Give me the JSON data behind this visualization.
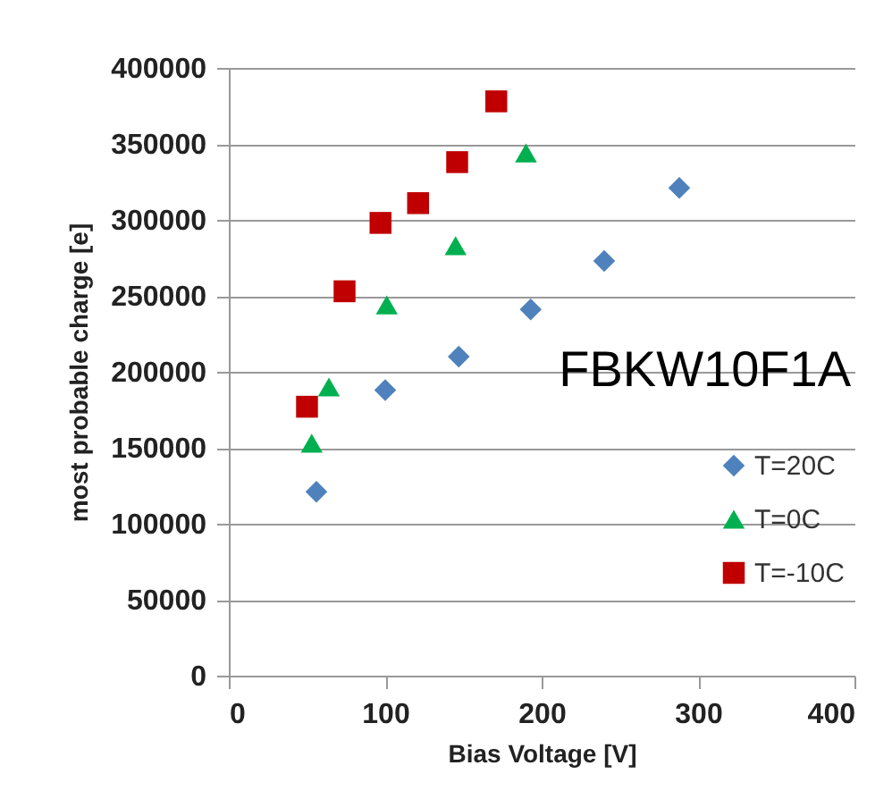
{
  "chart_data": {
    "type": "scatter",
    "xlabel": "Bias Voltage [V]",
    "ylabel": "most probable charge [e]",
    "xlim": [
      0,
      400
    ],
    "xticks": [
      0,
      100,
      200,
      300,
      400
    ],
    "ylim": [
      0,
      400000
    ],
    "yticks": [
      0,
      50000,
      100000,
      150000,
      200000,
      250000,
      300000,
      350000,
      400000
    ],
    "grid": "y",
    "legend": "right",
    "annotations": [
      "FBKW10F1A"
    ],
    "series": [
      {
        "name": "T=20C",
        "color": "#4f81bd",
        "marker": "diamond",
        "x": [
          56,
          100,
          147,
          193,
          240,
          288
        ],
        "values": [
          121000,
          188000,
          210000,
          241000,
          273000,
          321000
        ]
      },
      {
        "name": "T=0C",
        "color": "#00b050",
        "marker": "triangle",
        "x": [
          53,
          64,
          101,
          145,
          190
        ],
        "values": [
          153000,
          190000,
          244000,
          283000,
          344000
        ]
      },
      {
        "name": "T=-10C",
        "color": "#c00000",
        "marker": "square",
        "x": [
          50,
          74,
          97,
          121,
          146,
          171
        ],
        "values": [
          177000,
          253000,
          298000,
          311000,
          338000,
          378000
        ]
      }
    ]
  }
}
